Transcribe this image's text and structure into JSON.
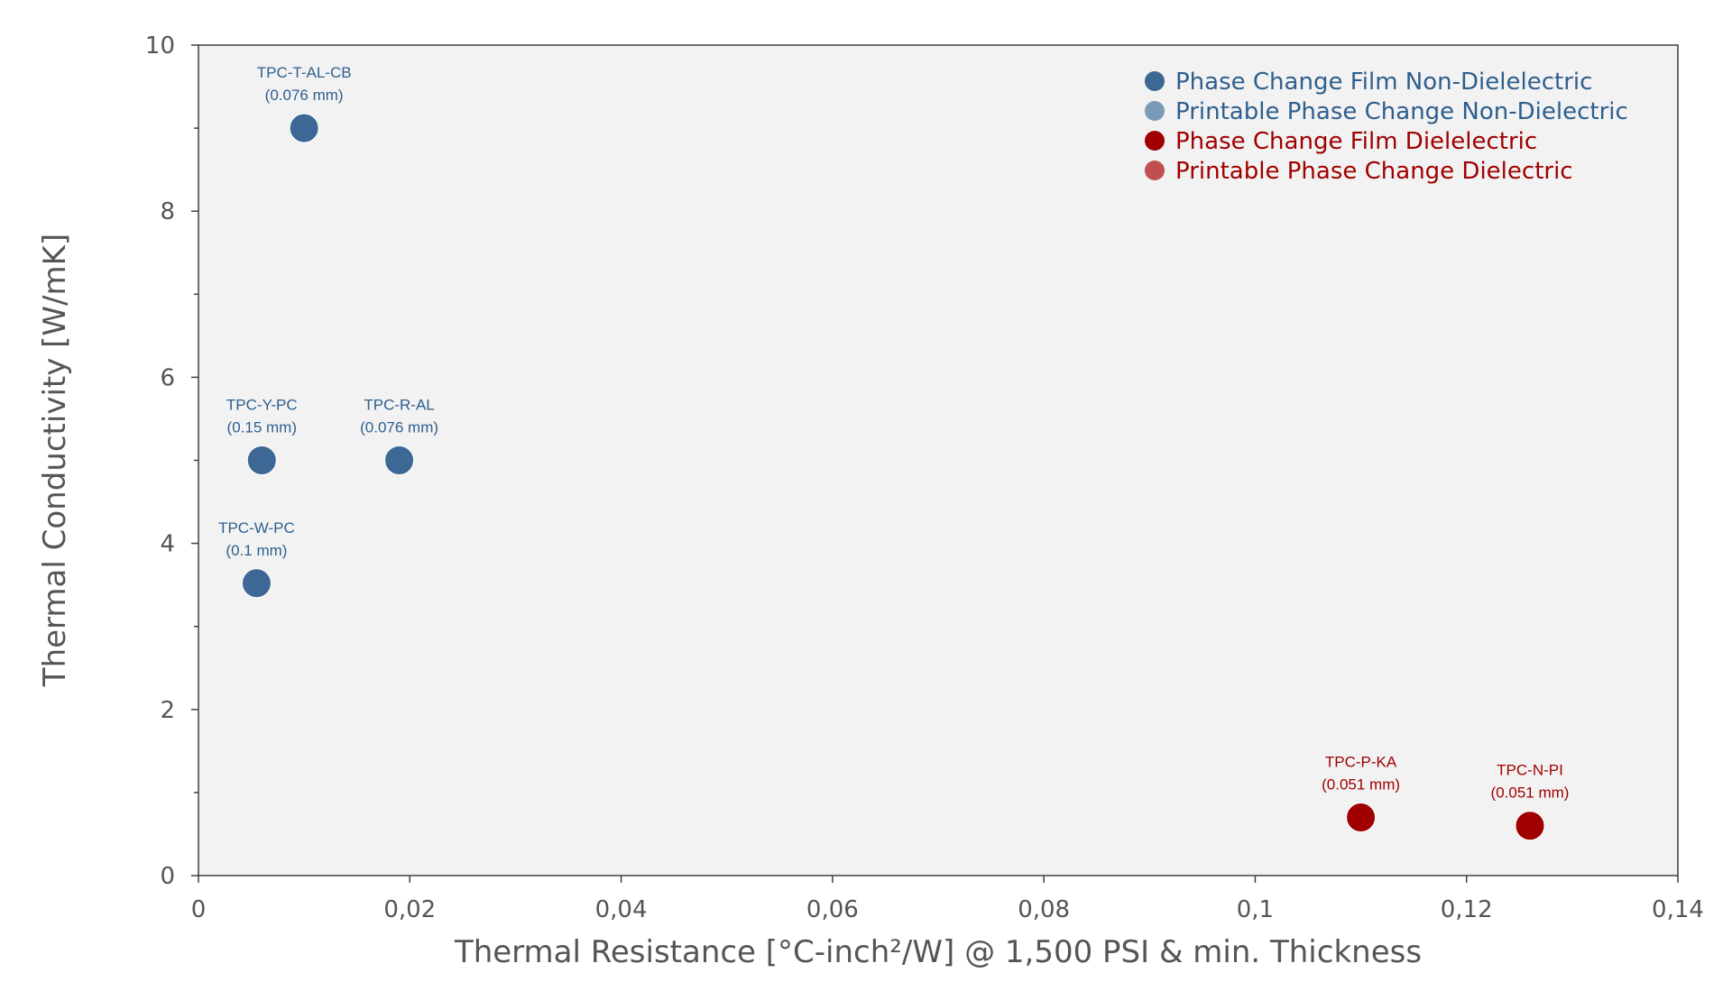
{
  "chart_data": {
    "type": "scatter",
    "xlabel": "Thermal Resistance [°C-inch²/W] @ 1,500 PSI & min. Thickness",
    "ylabel": "Thermal Conductivity [W/mK]",
    "xlim": [
      0,
      0.14
    ],
    "ylim": [
      0,
      10
    ],
    "x_ticks": [
      "0",
      "0,02",
      "0,04",
      "0,06",
      "0,08",
      "0,1",
      "0,12",
      "0,14"
    ],
    "y_ticks": [
      "0",
      "2",
      "4",
      "6",
      "8",
      "10"
    ],
    "grid": false,
    "legend_position": "top-right",
    "series": [
      {
        "name": "Phase Change Film Non-Dielelectric",
        "color": "#3D6896",
        "text_color": "#2E5F8E",
        "points": [
          {
            "x": 0.01,
            "y": 9.0,
            "label": "TPC-T-AL-CB",
            "sub": "(0.076 mm)"
          },
          {
            "x": 0.006,
            "y": 5.0,
            "label": "TPC-Y-PC",
            "sub": "(0.15 mm)"
          },
          {
            "x": 0.019,
            "y": 5.0,
            "label": "TPC-R-AL",
            "sub": "(0.076 mm)"
          },
          {
            "x": 0.0055,
            "y": 3.52,
            "label": "TPC-W-PC",
            "sub": "(0.1 mm)"
          }
        ]
      },
      {
        "name": "Printable Phase Change Non-Dielectric",
        "color": "#7A9AB8",
        "text_color": "#2E5F8E",
        "points": []
      },
      {
        "name": "Phase Change Film Dielelectric",
        "color": "#A00000",
        "text_color": "#A00000",
        "points": [
          {
            "x": 0.11,
            "y": 0.7,
            "label": "TPC-P-KA",
            "sub": "(0.051 mm)"
          },
          {
            "x": 0.126,
            "y": 0.6,
            "label": "TPC-N-PI",
            "sub": "(0.051 mm)"
          }
        ]
      },
      {
        "name": "Printable Phase Change Dielectric",
        "color": "#C05050",
        "text_color": "#A00000",
        "points": []
      }
    ]
  }
}
